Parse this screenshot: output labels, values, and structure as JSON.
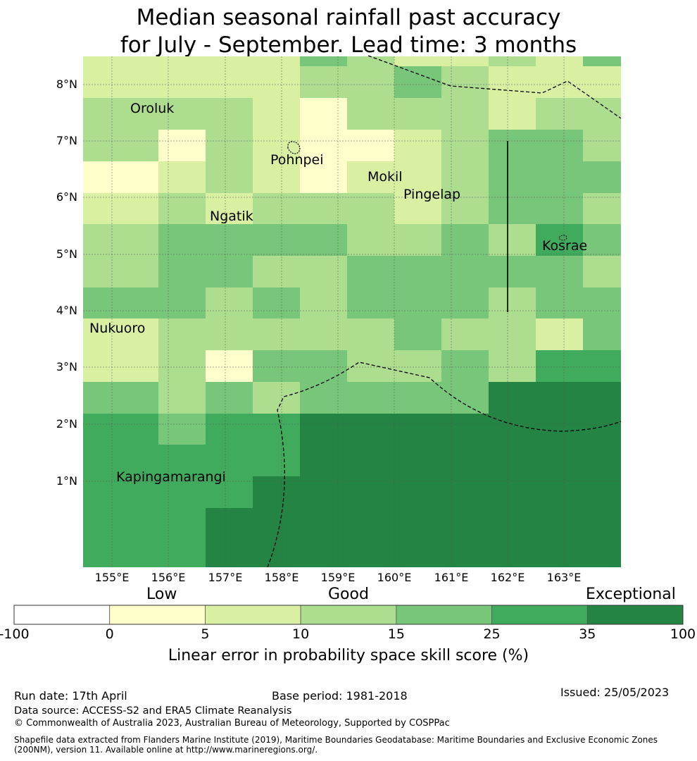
{
  "title": {
    "line1": "Median seasonal rainfall past accuracy",
    "line2": "for July - September. Lead time: 3 months"
  },
  "map": {
    "lon_range": [
      154.5,
      164.0
    ],
    "lat_range": [
      -0.5,
      8.5
    ],
    "lat_ticks": [
      "8°N",
      "7°N",
      "6°N",
      "5°N",
      "4°N",
      "3°N",
      "2°N",
      "1°N"
    ],
    "lon_ticks": [
      "155°E",
      "156°E",
      "157°E",
      "158°E",
      "159°E",
      "160°E",
      "161°E",
      "162°E",
      "163°E"
    ],
    "grid_cols": 11,
    "grid_rows": 13,
    "skill_classes": [
      [
        2,
        2,
        2,
        2,
        4,
        3,
        2,
        2,
        3,
        2,
        4
      ],
      [
        2,
        2,
        2,
        2,
        3,
        3,
        4,
        3,
        2,
        2,
        2
      ],
      [
        3,
        3,
        3,
        2,
        1,
        3,
        3,
        3,
        2,
        3,
        3
      ],
      [
        3,
        1,
        3,
        2,
        1,
        1,
        2,
        3,
        4,
        4,
        3
      ],
      [
        1,
        2,
        3,
        2,
        1,
        2,
        2,
        3,
        4,
        4,
        4
      ],
      [
        2,
        3,
        2,
        3,
        3,
        3,
        2,
        3,
        4,
        4,
        3
      ],
      [
        3,
        4,
        4,
        4,
        4,
        3,
        3,
        4,
        3,
        5,
        4
      ],
      [
        3,
        4,
        4,
        3,
        3,
        4,
        4,
        4,
        4,
        4,
        3
      ],
      [
        4,
        4,
        3,
        4,
        3,
        4,
        4,
        4,
        3,
        4,
        4
      ],
      [
        2,
        3,
        3,
        3,
        3,
        3,
        4,
        3,
        3,
        2,
        4
      ],
      [
        2,
        3,
        1,
        4,
        4,
        3,
        3,
        4,
        3,
        5,
        5
      ],
      [
        4,
        3,
        4,
        3,
        4,
        4,
        4,
        4,
        6,
        6,
        6
      ],
      [
        5,
        4,
        5,
        5,
        6,
        6,
        6,
        6,
        6,
        6,
        6
      ]
    ],
    "lower_classes": [
      [
        5,
        5,
        5,
        5,
        6,
        6,
        6,
        6,
        6,
        6,
        6
      ],
      [
        5,
        5,
        5,
        6,
        6,
        6,
        6,
        6,
        6,
        6,
        6
      ],
      [
        5,
        5,
        6,
        6,
        6,
        6,
        6,
        6,
        6,
        6,
        6
      ],
      [
        5,
        5,
        6,
        6,
        6,
        6,
        6,
        6,
        6,
        6,
        6
      ]
    ],
    "places": [
      {
        "name": "Oroluk",
        "lon": 155.3,
        "lat": 7.6
      },
      {
        "name": "Pohnpei",
        "lon": 158.3,
        "lat": 6.8
      },
      {
        "name": "Mokil",
        "lon": 159.9,
        "lat": 6.7
      },
      {
        "name": "Pingelap",
        "lon": 160.7,
        "lat": 6.2
      },
      {
        "name": "Ngatik",
        "lon": 157.2,
        "lat": 5.8
      },
      {
        "name": "Kosrae",
        "lon": 163.0,
        "lat": 5.3
      },
      {
        "name": "Nukuoro",
        "lon": 154.8,
        "lat": 3.9
      },
      {
        "name": "Kapingamarangi",
        "lon": 155.4,
        "lat": 1.1
      }
    ]
  },
  "colorbar": {
    "colors": [
      "#ffffff",
      "#ffffcc",
      "#d9f0a3",
      "#addd8e",
      "#78c679",
      "#41ab5d",
      "#238443"
    ],
    "ticks": [
      "-100",
      "0",
      "5",
      "10",
      "15",
      "25",
      "35",
      "100"
    ],
    "categories": {
      "low": "Low",
      "good": "Good",
      "exceptional": "Exceptional"
    },
    "title": "Linear error in probability space skill score (%)"
  },
  "footer": {
    "run_date": "Run date: 17th April",
    "base_period": "Base period: 1981-2018",
    "issued": "Issued: 25/05/2023",
    "data_source": "Data source: ACCESS-S2 and ERA5 Climate Reanalysis",
    "copyright": "© Commonwealth of Australia 2023, Australian Bureau of Meteorology, Supported by COSPPac",
    "shapefile_line1": "Shapefile data extracted from Flanders Marine Institute (2019), Maritime Boundaries Geodatabase: Maritime Boundaries and Exclusive Economic Zones",
    "shapefile_line2": "(200NM), version 11. Available online at http://www.marineregions.org/."
  }
}
